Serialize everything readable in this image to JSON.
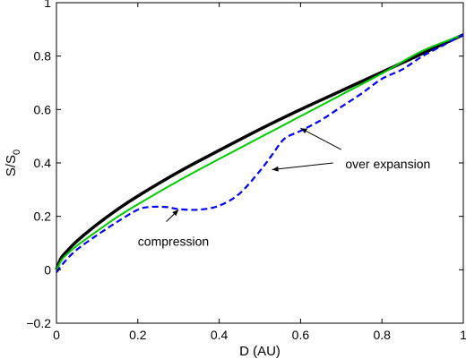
{
  "chart_data": {
    "type": "line",
    "xlabel": "D (AU)",
    "ylabel": "S/S",
    "ylabel_subscript": "0",
    "xlim": [
      0,
      1
    ],
    "ylim": [
      -0.2,
      1
    ],
    "xticks": [
      0,
      0.2,
      0.4,
      0.6,
      0.8,
      1
    ],
    "xtick_labels": [
      "0",
      "0.2",
      "0.4",
      "0.6",
      "0.8",
      "1"
    ],
    "yticks": [
      -0.2,
      0,
      0.2,
      0.4,
      0.6,
      0.8,
      1
    ],
    "ytick_labels": [
      "−0.2",
      "0",
      "0.2",
      "0.4",
      "0.6",
      "0.8",
      "1"
    ],
    "grid": false,
    "series": [
      {
        "color": "#000000",
        "style": "solid-thick",
        "x": [
          0,
          0.01,
          0.02,
          0.05,
          0.1,
          0.15,
          0.2,
          0.3,
          0.4,
          0.5,
          0.6,
          0.7,
          0.8,
          0.9,
          1.0
        ],
        "y": [
          0.0,
          0.04,
          0.06,
          0.107,
          0.17,
          0.226,
          0.276,
          0.366,
          0.447,
          0.526,
          0.6,
          0.67,
          0.74,
          0.81,
          0.88
        ]
      },
      {
        "color": "#00cc00",
        "style": "solid",
        "x": [
          0,
          0.01,
          0.02,
          0.05,
          0.1,
          0.15,
          0.2,
          0.3,
          0.4,
          0.5,
          0.6,
          0.7,
          0.8,
          0.9,
          1.0
        ],
        "y": [
          0.0,
          0.03,
          0.05,
          0.09,
          0.145,
          0.198,
          0.245,
          0.333,
          0.415,
          0.495,
          0.575,
          0.655,
          0.735,
          0.82,
          0.88
        ]
      },
      {
        "color": "#0000ff",
        "style": "dashed",
        "x": [
          0,
          0.02,
          0.05,
          0.1,
          0.15,
          0.2,
          0.23,
          0.27,
          0.3,
          0.35,
          0.4,
          0.45,
          0.5,
          0.53,
          0.56,
          0.6,
          0.65,
          0.7,
          0.75,
          0.8,
          0.85,
          0.9,
          0.95,
          1.0
        ],
        "y": [
          -0.01,
          0.03,
          0.075,
          0.13,
          0.18,
          0.225,
          0.235,
          0.235,
          0.227,
          0.225,
          0.24,
          0.285,
          0.37,
          0.43,
          0.49,
          0.52,
          0.56,
          0.61,
          0.66,
          0.715,
          0.75,
          0.8,
          0.84,
          0.88
        ]
      }
    ],
    "annotations": [
      {
        "text": "compression",
        "x": 0.2,
        "y": 0.09,
        "arrow_from": [
          0.27,
          0.18
        ],
        "arrow_to": [
          0.3,
          0.225
        ]
      },
      {
        "text": "over expansion",
        "x": 0.71,
        "y": 0.38,
        "arrows": [
          {
            "from": [
              0.7,
              0.45
            ],
            "to": [
              0.6,
              0.53
            ]
          },
          {
            "from": [
              0.68,
              0.4
            ],
            "to": [
              0.53,
              0.375
            ]
          }
        ]
      }
    ]
  }
}
